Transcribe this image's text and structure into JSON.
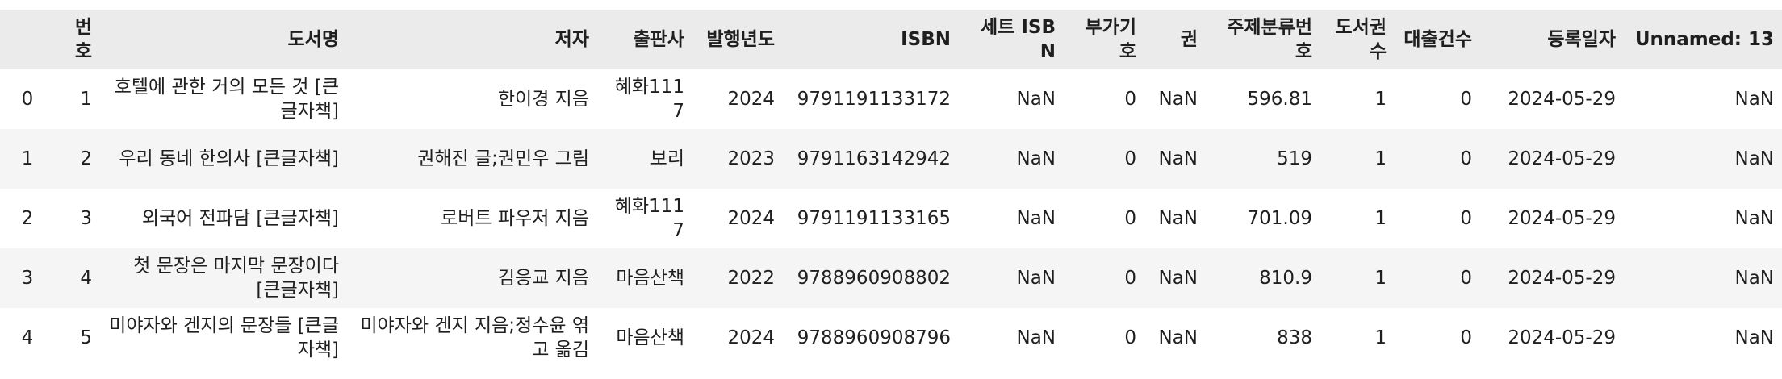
{
  "columns": [
    "",
    "번호",
    "도서명",
    "저자",
    "출판사",
    "발행년도",
    "ISBN",
    "세트 ISBN",
    "부가기호",
    "권",
    "주제분류번호",
    "도서권수",
    "대출건수",
    "등록일자",
    "Unnamed: 13"
  ],
  "rows": [
    [
      "0",
      "1",
      "호텔에 관한 거의 모든 것 [큰글자책]",
      "한이경 지음",
      "혜화1117",
      "2024",
      "9791191133172",
      "NaN",
      "0",
      "NaN",
      "596.81",
      "1",
      "0",
      "2024-05-29",
      "NaN"
    ],
    [
      "1",
      "2",
      "우리 동네 한의사 [큰글자책]",
      "권해진 글;권민우 그림",
      "보리",
      "2023",
      "9791163142942",
      "NaN",
      "0",
      "NaN",
      "519",
      "1",
      "0",
      "2024-05-29",
      "NaN"
    ],
    [
      "2",
      "3",
      "외국어 전파담 [큰글자책]",
      "로버트 파우저 지음",
      "혜화1117",
      "2024",
      "9791191133165",
      "NaN",
      "0",
      "NaN",
      "701.09",
      "1",
      "0",
      "2024-05-29",
      "NaN"
    ],
    [
      "3",
      "4",
      "첫 문장은 마지막 문장이다 [큰글자책]",
      "김응교 지음",
      "마음산책",
      "2022",
      "9788960908802",
      "NaN",
      "0",
      "NaN",
      "810.9",
      "1",
      "0",
      "2024-05-29",
      "NaN"
    ],
    [
      "4",
      "5",
      "미야자와 겐지의 문장들 [큰글자책]",
      "미야자와 겐지 지음;정수윤 엮고 옮김",
      "마음산책",
      "2024",
      "9788960908796",
      "NaN",
      "0",
      "NaN",
      "838",
      "1",
      "0",
      "2024-05-29",
      "NaN"
    ]
  ]
}
